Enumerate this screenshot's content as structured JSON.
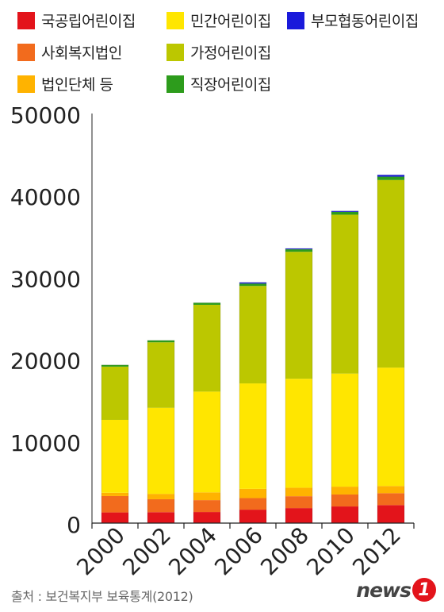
{
  "chart_data": {
    "type": "bar",
    "stacked": true,
    "categories": [
      "2000",
      "2002",
      "2004",
      "2006",
      "2008",
      "2010",
      "2012"
    ],
    "series": [
      {
        "name": "국공립어린이집",
        "color": "#e3141b",
        "values": [
          1300,
          1330,
          1350,
          1640,
          1830,
          2030,
          2200
        ]
      },
      {
        "name": "사회복지법인",
        "color": "#f26b1d",
        "values": [
          2000,
          1580,
          1450,
          1410,
          1450,
          1460,
          1450
        ]
      },
      {
        "name": "법인단체 등",
        "color": "#ffb300",
        "values": [
          400,
          660,
          950,
          1130,
          1040,
          960,
          880
        ]
      },
      {
        "name": "민간어린이집",
        "color": "#ffe600",
        "values": [
          8900,
          10500,
          12300,
          12870,
          13300,
          13800,
          14450
        ]
      },
      {
        "name": "가정어린이집",
        "color": "#bcc700",
        "values": [
          6500,
          8000,
          10600,
          11900,
          15500,
          19400,
          22900
        ]
      },
      {
        "name": "직장어린이집",
        "color": "#2d9c1c",
        "values": [
          200,
          230,
          240,
          290,
          300,
          350,
          410
        ]
      },
      {
        "name": "부모협동어린이집",
        "color": "#1a1adb",
        "values": [
          0,
          0,
          0,
          140,
          100,
          100,
          210
        ]
      }
    ],
    "yticks": [
      0,
      10000,
      20000,
      30000,
      40000,
      50000
    ],
    "ylim": [
      0,
      50000
    ],
    "grid": false,
    "legend": "top"
  },
  "legend": {
    "items": [
      {
        "label": "국공립어린이집",
        "color": "#e3141b"
      },
      {
        "label": "민간어린이집",
        "color": "#ffe600"
      },
      {
        "label": "부모협동어린이집",
        "color": "#1a1adb"
      },
      {
        "label": "사회복지법인",
        "color": "#f26b1d"
      },
      {
        "label": "가정어린이집",
        "color": "#bcc700"
      },
      {
        "label": "법인단체 등",
        "color": "#ffb300"
      },
      {
        "label": "직장어린이집",
        "color": "#2d9c1c"
      }
    ]
  },
  "footer": {
    "source": "출처 : 보건복지부 보육통계(2012)"
  },
  "logo": {
    "text": "news",
    "badge": "1"
  }
}
